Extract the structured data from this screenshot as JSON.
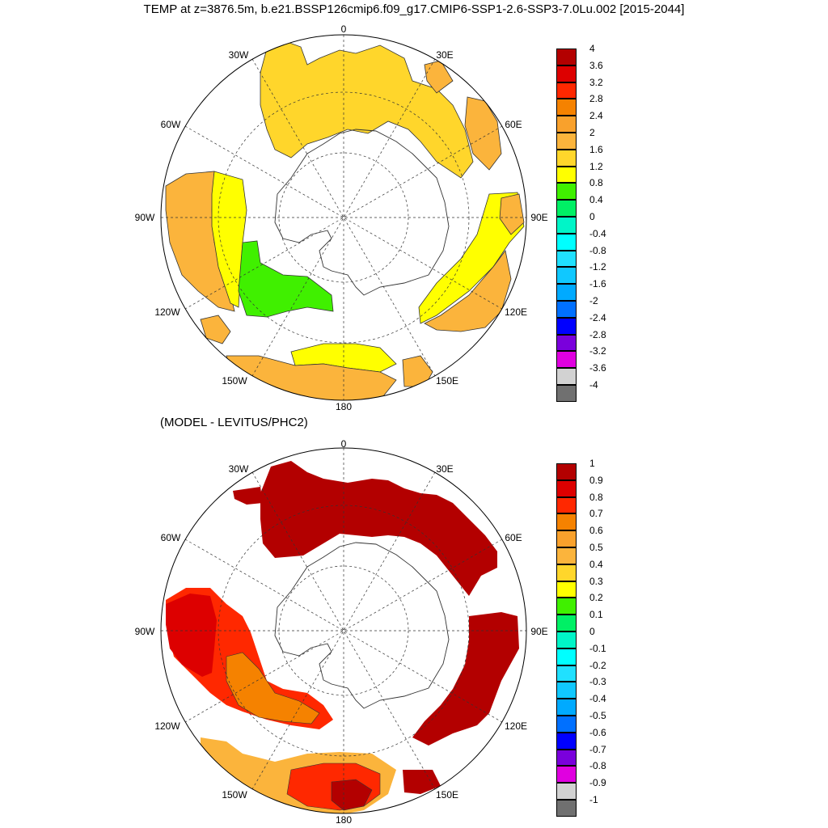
{
  "title": "TEMP at z=3876.5m, b.e21.BSSP126cmip6.f09_g17.CMIP6-SSP1-2.6-SSP3-7.0Lu.002 [2015-2044]",
  "subtitle": "(MODEL - LEVITUS/PHC2)",
  "lon_labels": [
    "0",
    "30E",
    "60E",
    "90E",
    "120E",
    "150E",
    "180",
    "150W",
    "120W",
    "90W",
    "60W",
    "30W"
  ],
  "panels": [
    {
      "id": "top",
      "colorbar": {
        "labels": [
          "4",
          "3.6",
          "3.2",
          "2.8",
          "2.4",
          "2",
          "1.6",
          "1.2",
          "0.8",
          "0.4",
          "0",
          "-0.4",
          "-0.8",
          "-1.2",
          "-1.6",
          "-2",
          "-2.4",
          "-2.8",
          "-3.2",
          "-3.6",
          "-4"
        ],
        "colors": [
          "#b30000",
          "#dd0000",
          "#ff2800",
          "#f58200",
          "#f9a12c",
          "#fbb43c",
          "#ffd62b",
          "#ffff00",
          "#40f000",
          "#00f065",
          "#00f5c8",
          "#00ffff",
          "#20e0ff",
          "#10c8ff",
          "#00aaff",
          "#0070ff",
          "#0000ff",
          "#7a00dc",
          "#e000e0",
          "#d2d2d2",
          "#707070"
        ]
      }
    },
    {
      "id": "bottom",
      "colorbar": {
        "labels": [
          "1",
          "0.9",
          "0.8",
          "0.7",
          "0.6",
          "0.5",
          "0.4",
          "0.3",
          "0.2",
          "0.1",
          "0",
          "-0.1",
          "-0.2",
          "-0.3",
          "-0.4",
          "-0.5",
          "-0.6",
          "-0.7",
          "-0.8",
          "-0.9",
          "-1"
        ],
        "colors": [
          "#b30000",
          "#dd0000",
          "#ff2800",
          "#f58200",
          "#f9a12c",
          "#fbb43c",
          "#ffd62b",
          "#ffff00",
          "#40f000",
          "#00f065",
          "#00f5c8",
          "#00ffff",
          "#20e0ff",
          "#10c8ff",
          "#00aaff",
          "#0070ff",
          "#0000ff",
          "#7a00dc",
          "#e000e0",
          "#d2d2d2",
          "#707070"
        ]
      }
    }
  ]
}
